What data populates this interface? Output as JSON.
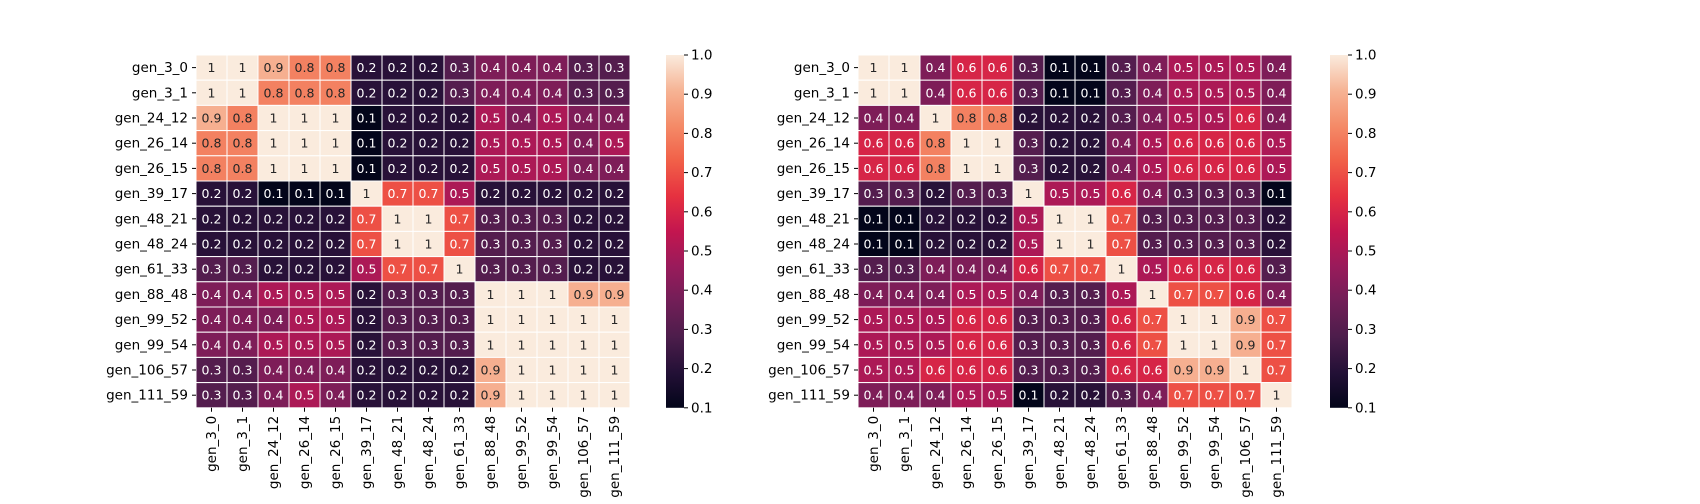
{
  "chart_data": [
    {
      "type": "heatmap",
      "title": "",
      "xlabel": "",
      "ylabel": "",
      "row_labels": [
        "gen_3_0",
        "gen_3_1",
        "gen_24_12",
        "gen_26_14",
        "gen_26_15",
        "gen_39_17",
        "gen_48_21",
        "gen_48_24",
        "gen_61_33",
        "gen_88_48",
        "gen_99_52",
        "gen_99_54",
        "gen_106_57",
        "gen_111_59"
      ],
      "col_labels": [
        "gen_3_0",
        "gen_3_1",
        "gen_24_12",
        "gen_26_14",
        "gen_26_15",
        "gen_39_17",
        "gen_48_21",
        "gen_48_24",
        "gen_61_33",
        "gen_88_48",
        "gen_99_52",
        "gen_99_54",
        "gen_106_57",
        "gen_111_59"
      ],
      "values": [
        [
          1,
          1,
          0.9,
          0.8,
          0.8,
          0.2,
          0.2,
          0.2,
          0.3,
          0.4,
          0.4,
          0.4,
          0.3,
          0.3
        ],
        [
          1,
          1,
          0.8,
          0.8,
          0.8,
          0.2,
          0.2,
          0.2,
          0.3,
          0.4,
          0.4,
          0.4,
          0.3,
          0.3
        ],
        [
          0.9,
          0.8,
          1,
          1,
          1,
          0.1,
          0.2,
          0.2,
          0.2,
          0.5,
          0.4,
          0.5,
          0.4,
          0.4
        ],
        [
          0.8,
          0.8,
          1,
          1,
          1,
          0.1,
          0.2,
          0.2,
          0.2,
          0.5,
          0.5,
          0.5,
          0.4,
          0.5
        ],
        [
          0.8,
          0.8,
          1,
          1,
          1,
          0.1,
          0.2,
          0.2,
          0.2,
          0.5,
          0.5,
          0.5,
          0.4,
          0.4
        ],
        [
          0.2,
          0.2,
          0.1,
          0.1,
          0.1,
          1,
          0.7,
          0.7,
          0.5,
          0.2,
          0.2,
          0.2,
          0.2,
          0.2
        ],
        [
          0.2,
          0.2,
          0.2,
          0.2,
          0.2,
          0.7,
          1,
          1,
          0.7,
          0.3,
          0.3,
          0.3,
          0.2,
          0.2
        ],
        [
          0.2,
          0.2,
          0.2,
          0.2,
          0.2,
          0.7,
          1,
          1,
          0.7,
          0.3,
          0.3,
          0.3,
          0.2,
          0.2
        ],
        [
          0.3,
          0.3,
          0.2,
          0.2,
          0.2,
          0.5,
          0.7,
          0.7,
          1,
          0.3,
          0.3,
          0.3,
          0.2,
          0.2
        ],
        [
          0.4,
          0.4,
          0.5,
          0.5,
          0.5,
          0.2,
          0.3,
          0.3,
          0.3,
          1,
          1,
          1,
          0.9,
          0.9
        ],
        [
          0.4,
          0.4,
          0.4,
          0.5,
          0.5,
          0.2,
          0.3,
          0.3,
          0.3,
          1,
          1,
          1,
          1,
          1
        ],
        [
          0.4,
          0.4,
          0.5,
          0.5,
          0.5,
          0.2,
          0.3,
          0.3,
          0.3,
          1,
          1,
          1,
          1,
          1
        ],
        [
          0.3,
          0.3,
          0.4,
          0.4,
          0.4,
          0.2,
          0.2,
          0.2,
          0.2,
          0.9,
          1,
          1,
          1,
          1
        ],
        [
          0.3,
          0.3,
          0.4,
          0.5,
          0.4,
          0.2,
          0.2,
          0.2,
          0.2,
          0.9,
          1,
          1,
          1,
          1
        ]
      ],
      "colorbar": {
        "min": 0.1,
        "max": 1.0,
        "ticks": [
          "0.1",
          "0.2",
          "0.3",
          "0.4",
          "0.5",
          "0.6",
          "0.7",
          "0.8",
          "0.9",
          "1.0"
        ]
      }
    },
    {
      "type": "heatmap",
      "title": "",
      "xlabel": "",
      "ylabel": "",
      "row_labels": [
        "gen_3_0",
        "gen_3_1",
        "gen_24_12",
        "gen_26_14",
        "gen_26_15",
        "gen_39_17",
        "gen_48_21",
        "gen_48_24",
        "gen_61_33",
        "gen_88_48",
        "gen_99_52",
        "gen_99_54",
        "gen_106_57",
        "gen_111_59"
      ],
      "col_labels": [
        "gen_3_0",
        "gen_3_1",
        "gen_24_12",
        "gen_26_14",
        "gen_26_15",
        "gen_39_17",
        "gen_48_21",
        "gen_48_24",
        "gen_61_33",
        "gen_88_48",
        "gen_99_52",
        "gen_99_54",
        "gen_106_57",
        "gen_111_59"
      ],
      "values": [
        [
          1,
          1,
          0.4,
          0.6,
          0.6,
          0.3,
          0.1,
          0.1,
          0.3,
          0.4,
          0.5,
          0.5,
          0.5,
          0.4
        ],
        [
          1,
          1,
          0.4,
          0.6,
          0.6,
          0.3,
          0.1,
          0.1,
          0.3,
          0.4,
          0.5,
          0.5,
          0.5,
          0.4
        ],
        [
          0.4,
          0.4,
          1,
          0.8,
          0.8,
          0.2,
          0.2,
          0.2,
          0.3,
          0.4,
          0.5,
          0.5,
          0.6,
          0.4
        ],
        [
          0.6,
          0.6,
          0.8,
          1,
          1,
          0.3,
          0.2,
          0.2,
          0.4,
          0.5,
          0.6,
          0.6,
          0.6,
          0.5
        ],
        [
          0.6,
          0.6,
          0.8,
          1,
          1,
          0.3,
          0.2,
          0.2,
          0.4,
          0.5,
          0.6,
          0.6,
          0.6,
          0.5
        ],
        [
          0.3,
          0.3,
          0.2,
          0.3,
          0.3,
          1,
          0.5,
          0.5,
          0.6,
          0.4,
          0.3,
          0.3,
          0.3,
          0.1
        ],
        [
          0.1,
          0.1,
          0.2,
          0.2,
          0.2,
          0.5,
          1,
          1,
          0.7,
          0.3,
          0.3,
          0.3,
          0.3,
          0.2
        ],
        [
          0.1,
          0.1,
          0.2,
          0.2,
          0.2,
          0.5,
          1,
          1,
          0.7,
          0.3,
          0.3,
          0.3,
          0.3,
          0.2
        ],
        [
          0.3,
          0.3,
          0.4,
          0.4,
          0.4,
          0.6,
          0.7,
          0.7,
          1,
          0.5,
          0.6,
          0.6,
          0.6,
          0.3
        ],
        [
          0.4,
          0.4,
          0.4,
          0.5,
          0.5,
          0.4,
          0.3,
          0.3,
          0.5,
          1,
          0.7,
          0.7,
          0.6,
          0.4
        ],
        [
          0.5,
          0.5,
          0.5,
          0.6,
          0.6,
          0.3,
          0.3,
          0.3,
          0.6,
          0.7,
          1,
          1,
          0.9,
          0.7
        ],
        [
          0.5,
          0.5,
          0.5,
          0.6,
          0.6,
          0.3,
          0.3,
          0.3,
          0.6,
          0.7,
          1,
          1,
          0.9,
          0.7
        ],
        [
          0.5,
          0.5,
          0.6,
          0.6,
          0.6,
          0.3,
          0.3,
          0.3,
          0.6,
          0.6,
          0.9,
          0.9,
          1,
          0.7
        ],
        [
          0.4,
          0.4,
          0.4,
          0.5,
          0.5,
          0.1,
          0.2,
          0.2,
          0.3,
          0.4,
          0.7,
          0.7,
          0.7,
          1
        ]
      ],
      "colorbar": {
        "min": 0.1,
        "max": 1.0,
        "ticks": [
          "0.1",
          "0.2",
          "0.3",
          "0.4",
          "0.5",
          "0.6",
          "0.7",
          "0.8",
          "0.9",
          "1.0"
        ]
      }
    }
  ]
}
